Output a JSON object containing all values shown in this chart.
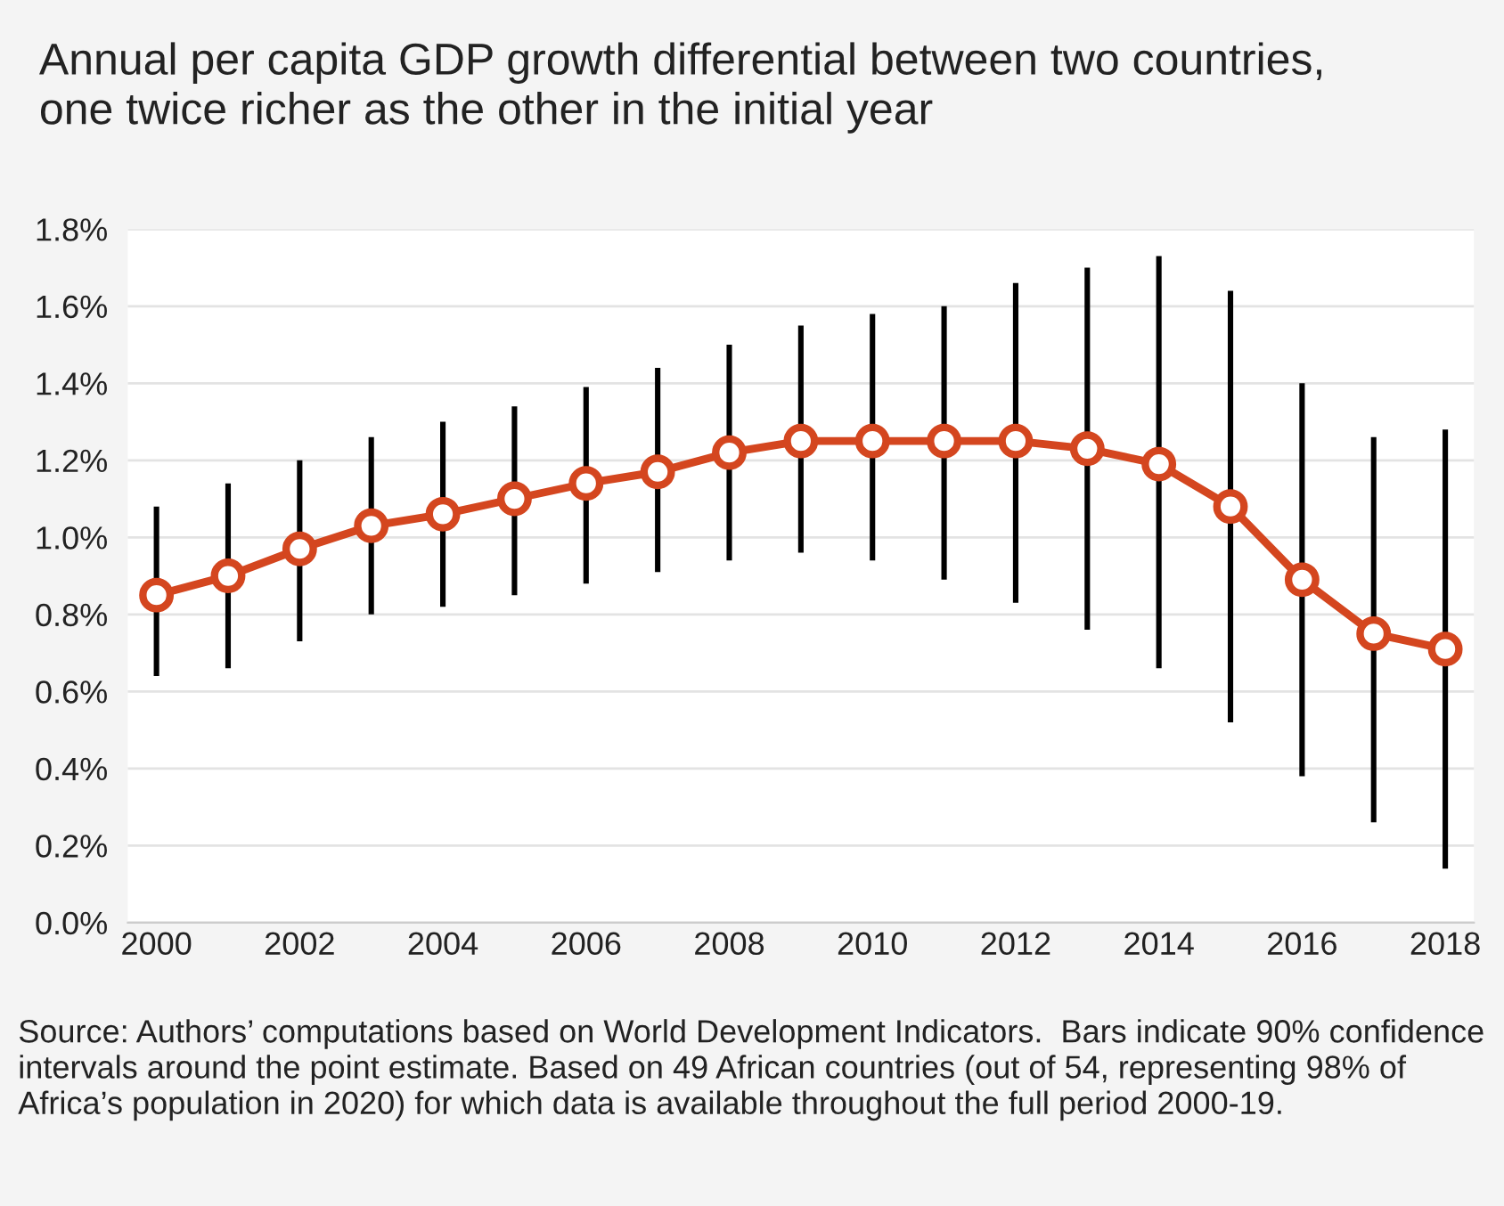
{
  "chart_data": {
    "type": "line",
    "title": "Annual per capita GDP growth differential between two countries,\none twice richer as the other in the initial year",
    "x": [
      2000,
      2001,
      2002,
      2003,
      2004,
      2005,
      2006,
      2007,
      2008,
      2009,
      2010,
      2011,
      2012,
      2013,
      2014,
      2015,
      2016,
      2017,
      2018
    ],
    "series": [
      {
        "color": "#d4461f",
        "values": [
          0.85,
          0.9,
          0.97,
          1.03,
          1.06,
          1.1,
          1.14,
          1.17,
          1.22,
          1.25,
          1.25,
          1.25,
          1.25,
          1.23,
          1.19,
          1.08,
          0.89,
          0.75,
          0.71
        ],
        "errors": [
          [
            0.64,
            1.08
          ],
          [
            0.66,
            1.14
          ],
          [
            0.73,
            1.2
          ],
          [
            0.8,
            1.26
          ],
          [
            0.82,
            1.3
          ],
          [
            0.85,
            1.34
          ],
          [
            0.88,
            1.39
          ],
          [
            0.91,
            1.44
          ],
          [
            0.94,
            1.5
          ],
          [
            0.96,
            1.55
          ],
          [
            0.94,
            1.58
          ],
          [
            0.89,
            1.6
          ],
          [
            0.83,
            1.66
          ],
          [
            0.76,
            1.7
          ],
          [
            0.66,
            1.73
          ],
          [
            0.52,
            1.64
          ],
          [
            0.38,
            1.4
          ],
          [
            0.26,
            1.26
          ],
          [
            0.14,
            1.28
          ]
        ]
      }
    ],
    "xlim": [
      1999.6,
      2018.4
    ],
    "xticks": [
      2000,
      2002,
      2004,
      2006,
      2008,
      2010,
      2012,
      2014,
      2016,
      2018
    ],
    "ylim": [
      0,
      1.8
    ],
    "yticks": [
      {
        "value": 0,
        "label": "0.0%"
      },
      {
        "value": 0.2,
        "label": "0.2%"
      },
      {
        "value": 0.4,
        "label": "0.4%"
      },
      {
        "value": 0.6,
        "label": "0.6%"
      },
      {
        "value": 0.8,
        "label": "0.8%"
      },
      {
        "value": 1.0,
        "label": "1.0%"
      },
      {
        "value": 1.2,
        "label": "1.2%"
      },
      {
        "value": 1.4,
        "label": "1.4%"
      },
      {
        "value": 1.6,
        "label": "1.6%"
      },
      {
        "value": 1.8,
        "label": "1.8%"
      }
    ],
    "grid": "y",
    "marker": "circle",
    "line_style": "solid",
    "annotations": [
      "Source: Authors’ computations based on World Development Indicators.  Bars indicate 90% confidence intervals around the point estimate. Based on 49 African countries (out of 54, representing 98% of Africa’s population in 2020) for which data is available throughout the full period 2000-19."
    ]
  }
}
